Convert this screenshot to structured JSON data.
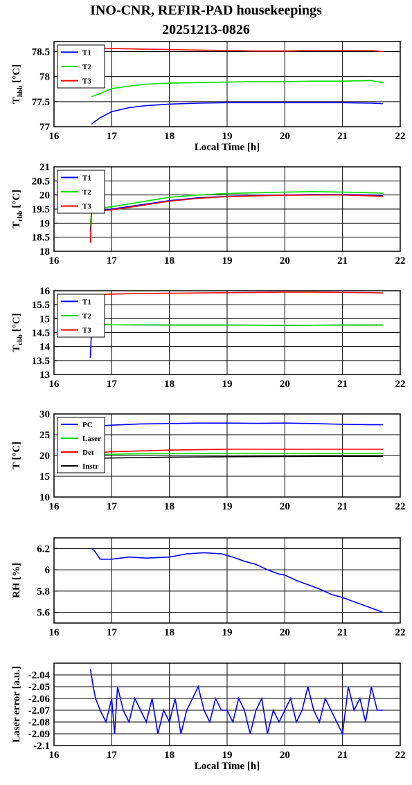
{
  "title_line1": "INO-CNR, REFIR-PAD housekeepings",
  "title_line2": "20251213-0826",
  "colors": {
    "blue": "#0000ff",
    "green": "#00e000",
    "red": "#ff0000",
    "black": "#000000"
  },
  "chart_data": [
    {
      "type": "line",
      "ylabel": "T",
      "ylabel_sub": "hbb",
      "ylabel_unit": " [°C]",
      "xlabel": "Local Time [h]",
      "xlim": [
        16,
        22
      ],
      "ylim": [
        77,
        78.7
      ],
      "yticks": [
        "77",
        "77.5",
        "78",
        "78.5"
      ],
      "ytick_values": [
        77,
        77.5,
        78,
        78.5
      ],
      "xticks": [
        "16",
        "17",
        "18",
        "19",
        "20",
        "21",
        "22"
      ],
      "grid": true,
      "legend": "top-left",
      "series": [
        {
          "name": "T1",
          "color": "blue",
          "x": [
            16.65,
            16.8,
            17.0,
            17.3,
            17.6,
            18.0,
            18.5,
            19.0,
            19.5,
            20.0,
            20.5,
            21.0,
            21.5,
            21.7
          ],
          "y": [
            77.05,
            77.18,
            77.3,
            77.38,
            77.42,
            77.45,
            77.47,
            77.48,
            77.48,
            77.48,
            77.48,
            77.48,
            77.47,
            77.46
          ]
        },
        {
          "name": "T2",
          "color": "green",
          "x": [
            16.65,
            16.8,
            17.0,
            17.3,
            17.6,
            18.0,
            18.5,
            19.0,
            19.5,
            20.0,
            20.5,
            21.0,
            21.5,
            21.7
          ],
          "y": [
            77.6,
            77.66,
            77.76,
            77.81,
            77.85,
            77.87,
            77.88,
            77.89,
            77.9,
            77.9,
            77.91,
            77.91,
            77.92,
            77.88
          ]
        },
        {
          "name": "T3",
          "color": "red",
          "x": [
            16.65,
            16.8,
            17.0,
            17.5,
            18.0,
            18.5,
            19.0,
            19.5,
            20.0,
            20.5,
            21.0,
            21.5,
            21.7
          ],
          "y": [
            78.6,
            78.57,
            78.56,
            78.55,
            78.54,
            78.53,
            78.52,
            78.51,
            78.51,
            78.52,
            78.52,
            78.52,
            78.5
          ]
        }
      ]
    },
    {
      "type": "line",
      "ylabel": "T",
      "ylabel_sub": "rbb",
      "ylabel_unit": " [°C]",
      "xlabel": "",
      "xlim": [
        16,
        22
      ],
      "ylim": [
        18,
        21
      ],
      "yticks": [
        "18",
        "18.5",
        "19",
        "19.5",
        "20",
        "20.5",
        "21"
      ],
      "ytick_values": [
        18,
        18.5,
        19,
        19.5,
        20,
        20.5,
        21
      ],
      "xticks": [
        "16",
        "17",
        "18",
        "19",
        "20",
        "21",
        "22"
      ],
      "grid": true,
      "legend": "top-left",
      "series": [
        {
          "name": "T1",
          "color": "blue",
          "x": [
            16.63,
            16.65,
            16.7,
            17.0,
            17.5,
            18.0,
            18.5,
            19.0,
            19.5,
            20.0,
            20.5,
            21.0,
            21.5,
            21.7
          ],
          "y": [
            18.7,
            19.45,
            19.45,
            19.5,
            19.65,
            19.8,
            19.9,
            19.95,
            19.98,
            20.0,
            20.02,
            20.02,
            20.0,
            19.98
          ]
        },
        {
          "name": "T2",
          "color": "green",
          "x": [
            16.63,
            16.65,
            16.7,
            17.0,
            17.5,
            18.0,
            18.5,
            19.0,
            19.5,
            20.0,
            20.5,
            21.0,
            21.5,
            21.7
          ],
          "y": [
            18.9,
            19.5,
            19.52,
            19.58,
            19.75,
            19.92,
            20.0,
            20.05,
            20.08,
            20.1,
            20.12,
            20.1,
            20.08,
            20.06
          ]
        },
        {
          "name": "T3",
          "color": "red",
          "x": [
            16.63,
            16.65,
            16.7,
            17.0,
            17.5,
            18.0,
            18.5,
            19.0,
            19.5,
            20.0,
            20.5,
            21.0,
            21.5,
            21.7
          ],
          "y": [
            18.3,
            19.4,
            19.42,
            19.47,
            19.62,
            19.78,
            19.88,
            19.94,
            19.97,
            19.99,
            20.0,
            20.0,
            19.97,
            19.95
          ]
        }
      ]
    },
    {
      "type": "line",
      "ylabel": "T",
      "ylabel_sub": "cbb",
      "ylabel_unit": " [°C]",
      "xlabel": "",
      "xlim": [
        16,
        22
      ],
      "ylim": [
        13,
        16
      ],
      "yticks": [
        "13",
        "13.5",
        "14",
        "14.5",
        "15",
        "15.5",
        "16"
      ],
      "ytick_values": [
        13,
        13.5,
        14,
        14.5,
        15,
        15.5,
        16
      ],
      "xticks": [
        "16",
        "17",
        "18",
        "19",
        "20",
        "21",
        "22"
      ],
      "grid": true,
      "legend": "top-left",
      "series": [
        {
          "name": "T1",
          "color": "blue",
          "x": [
            16.63,
            16.65,
            16.7,
            17.0,
            18.0,
            19.0,
            20.0,
            21.0,
            21.7
          ],
          "y": [
            13.6,
            14.6,
            14.8,
            14.78,
            14.77,
            14.77,
            14.76,
            14.77,
            14.77
          ]
        },
        {
          "name": "T2",
          "color": "green",
          "x": [
            16.65,
            16.7,
            17.0,
            18.0,
            19.0,
            20.0,
            21.0,
            21.7
          ],
          "y": [
            14.7,
            14.8,
            14.78,
            14.77,
            14.77,
            14.76,
            14.77,
            14.77
          ]
        },
        {
          "name": "T3",
          "color": "red",
          "x": [
            16.65,
            16.8,
            17.0,
            17.5,
            18.0,
            18.5,
            19.0,
            19.5,
            20.0,
            20.5,
            21.0,
            21.5,
            21.7
          ],
          "y": [
            15.85,
            15.86,
            15.88,
            15.9,
            15.91,
            15.92,
            15.93,
            15.94,
            15.95,
            15.95,
            15.94,
            15.93,
            15.92
          ]
        }
      ]
    },
    {
      "type": "line",
      "ylabel": "T [°C]",
      "xlabel": "",
      "xlim": [
        16,
        22
      ],
      "ylim": [
        10,
        30
      ],
      "yticks": [
        "10",
        "15",
        "20",
        "25",
        "30"
      ],
      "ytick_values": [
        10,
        15,
        20,
        25,
        30
      ],
      "xticks": [
        "16",
        "17",
        "18",
        "19",
        "20",
        "21",
        "22"
      ],
      "grid": true,
      "legend": "top-left",
      "series": [
        {
          "name": "PC",
          "color": "blue",
          "x": [
            16.65,
            17.0,
            17.5,
            18.0,
            18.5,
            19.0,
            19.5,
            20.0,
            20.5,
            21.0,
            21.5,
            21.7
          ],
          "y": [
            27.0,
            27.3,
            27.6,
            27.7,
            27.8,
            27.8,
            27.75,
            27.8,
            27.7,
            27.5,
            27.4,
            27.4
          ]
        },
        {
          "name": "Laser",
          "color": "green",
          "x": [
            16.65,
            17.0,
            17.5,
            18.0,
            19.0,
            20.0,
            21.0,
            21.7
          ],
          "y": [
            20.2,
            20.3,
            20.4,
            20.45,
            20.5,
            20.5,
            20.5,
            20.5
          ]
        },
        {
          "name": "Det",
          "color": "red",
          "x": [
            16.65,
            17.0,
            17.5,
            18.0,
            18.5,
            19.0,
            20.0,
            21.0,
            21.7
          ],
          "y": [
            20.6,
            20.9,
            21.1,
            21.3,
            21.4,
            21.5,
            21.5,
            21.5,
            21.5
          ]
        },
        {
          "name": "Instr",
          "color": "black",
          "x": [
            16.65,
            17.0,
            17.5,
            18.0,
            19.0,
            20.0,
            21.0,
            21.7
          ],
          "y": [
            19.3,
            19.4,
            19.5,
            19.6,
            19.7,
            19.75,
            19.8,
            19.8
          ]
        }
      ]
    },
    {
      "type": "line",
      "ylabel": "RH [%]",
      "xlabel": "",
      "xlim": [
        16,
        22
      ],
      "ylim": [
        5.5,
        6.3
      ],
      "yticks": [
        "5.6",
        "5.8",
        "6",
        "6.2"
      ],
      "ytick_values": [
        5.6,
        5.8,
        6.0,
        6.2
      ],
      "xticks": [
        "16",
        "17",
        "18",
        "19",
        "20",
        "21",
        "22"
      ],
      "grid": true,
      "legend": "none",
      "series": [
        {
          "color": "blue",
          "x": [
            16.65,
            16.7,
            16.8,
            17.0,
            17.3,
            17.6,
            18.0,
            18.3,
            18.6,
            18.9,
            19.1,
            19.3,
            19.5,
            19.7,
            19.9,
            20.0,
            20.2,
            20.4,
            20.6,
            20.8,
            21.0,
            21.2,
            21.4,
            21.6,
            21.7
          ],
          "y": [
            6.2,
            6.18,
            6.1,
            6.1,
            6.12,
            6.11,
            6.12,
            6.15,
            6.16,
            6.15,
            6.12,
            6.08,
            6.05,
            6.0,
            5.96,
            5.95,
            5.9,
            5.86,
            5.82,
            5.77,
            5.74,
            5.7,
            5.66,
            5.62,
            5.6
          ]
        }
      ]
    },
    {
      "type": "line",
      "ylabel": "Laser error [a.u.]",
      "xlabel": "Local Time [h]",
      "xlim": [
        16,
        22
      ],
      "ylim": [
        -2.1,
        -2.03
      ],
      "yticks": [
        "-2.1",
        "-2.09",
        "-2.08",
        "-2.07",
        "-2.06",
        "-2.05",
        "-2.04"
      ],
      "ytick_values": [
        -2.1,
        -2.09,
        -2.08,
        -2.07,
        -2.06,
        -2.05,
        -2.04
      ],
      "xticks": [
        "16",
        "17",
        "18",
        "19",
        "20",
        "21",
        "22"
      ],
      "grid": true,
      "legend": "none",
      "series": [
        {
          "color": "blue",
          "x": [
            16.63,
            16.68,
            16.72,
            16.8,
            16.9,
            17.0,
            17.05,
            17.1,
            17.2,
            17.3,
            17.4,
            17.5,
            17.6,
            17.7,
            17.8,
            17.9,
            18.0,
            18.1,
            18.2,
            18.3,
            18.4,
            18.5,
            18.6,
            18.7,
            18.8,
            18.9,
            19.0,
            19.1,
            19.2,
            19.3,
            19.4,
            19.5,
            19.6,
            19.7,
            19.8,
            19.9,
            20.0,
            20.1,
            20.2,
            20.3,
            20.4,
            20.5,
            20.6,
            20.7,
            20.8,
            20.9,
            21.0,
            21.1,
            21.2,
            21.3,
            21.4,
            21.5,
            21.6,
            21.7
          ],
          "y": [
            -2.035,
            -2.05,
            -2.06,
            -2.07,
            -2.08,
            -2.06,
            -2.09,
            -2.05,
            -2.07,
            -2.08,
            -2.06,
            -2.07,
            -2.08,
            -2.06,
            -2.09,
            -2.07,
            -2.08,
            -2.06,
            -2.09,
            -2.07,
            -2.06,
            -2.05,
            -2.07,
            -2.08,
            -2.06,
            -2.07,
            -2.07,
            -2.08,
            -2.06,
            -2.07,
            -2.09,
            -2.07,
            -2.06,
            -2.09,
            -2.07,
            -2.08,
            -2.07,
            -2.06,
            -2.08,
            -2.07,
            -2.05,
            -2.07,
            -2.08,
            -2.06,
            -2.07,
            -2.08,
            -2.09,
            -2.05,
            -2.07,
            -2.06,
            -2.08,
            -2.05,
            -2.07,
            -2.07
          ]
        }
      ]
    }
  ]
}
